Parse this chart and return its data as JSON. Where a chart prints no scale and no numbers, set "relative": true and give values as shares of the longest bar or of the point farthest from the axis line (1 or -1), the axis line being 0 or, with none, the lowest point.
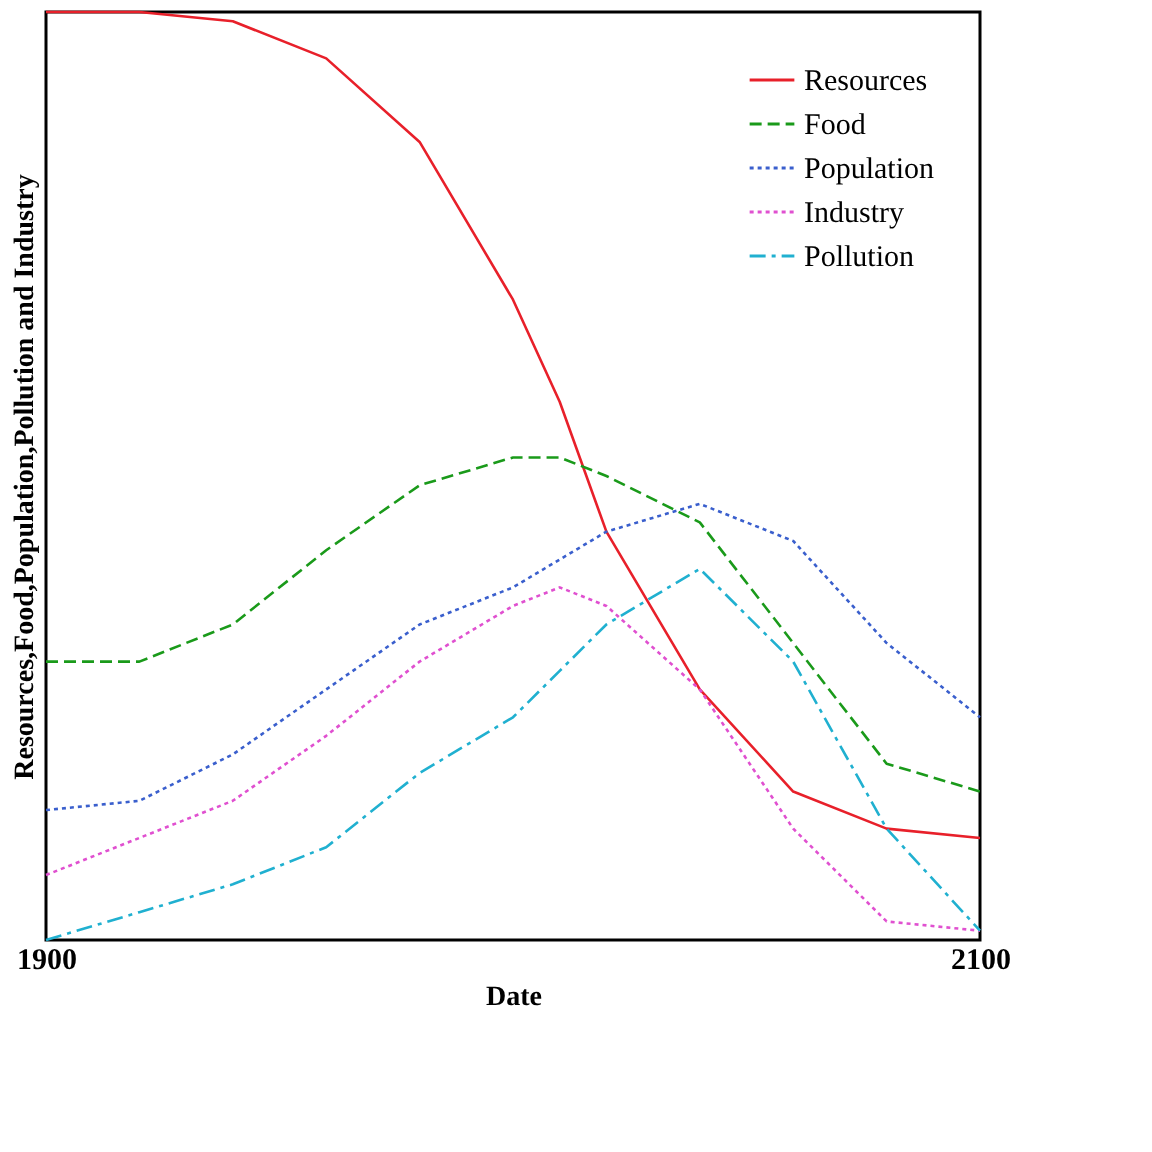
{
  "chart_data": {
    "type": "line",
    "relative": true,
    "xlabel": "Date",
    "ylabel": "Resources,Food,Population,Pollution and Industry",
    "x": [
      1900,
      1920,
      1940,
      1960,
      1980,
      2000,
      2010,
      2020,
      2040,
      2060,
      2080,
      2100
    ],
    "xlim": [
      1900,
      2100
    ],
    "xticks": [
      1900,
      2100
    ],
    "tick_labels": "x",
    "grid": false,
    "legend": "top right",
    "series": [
      {
        "name": "Resources",
        "color": "#e8202a",
        "line_style": "solid",
        "values": [
          1.0,
          1.0,
          0.99,
          0.95,
          0.86,
          0.69,
          0.58,
          0.44,
          0.27,
          0.16,
          0.12,
          0.11
        ]
      },
      {
        "name": "Food",
        "color": "#1a9a1a",
        "line_style": "dashed",
        "values": [
          0.3,
          0.3,
          0.34,
          0.42,
          0.49,
          0.52,
          0.52,
          0.5,
          0.45,
          0.32,
          0.19,
          0.16
        ]
      },
      {
        "name": "Population",
        "color": "#3a5fcd",
        "line_style": "dotted",
        "values": [
          0.14,
          0.15,
          0.2,
          0.27,
          0.34,
          0.38,
          0.41,
          0.44,
          0.47,
          0.43,
          0.32,
          0.24
        ]
      },
      {
        "name": "Industry",
        "color": "#e050d0",
        "line_style": "dotted",
        "values": [
          0.07,
          0.11,
          0.15,
          0.22,
          0.3,
          0.36,
          0.38,
          0.36,
          0.27,
          0.12,
          0.02,
          0.01
        ]
      },
      {
        "name": "Pollution",
        "color": "#20b0d0",
        "line_style": "dashdot",
        "values": [
          0.0,
          0.03,
          0.06,
          0.1,
          0.18,
          0.24,
          0.29,
          0.34,
          0.4,
          0.3,
          0.12,
          0.01
        ]
      }
    ]
  }
}
